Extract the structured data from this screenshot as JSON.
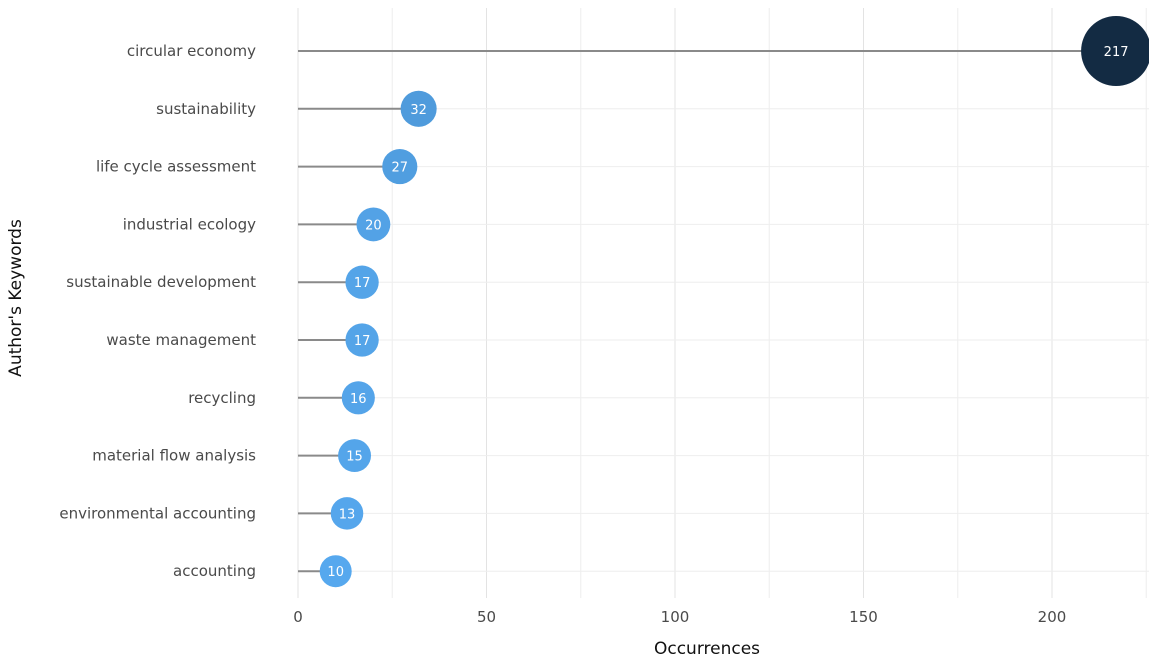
{
  "chart_data": {
    "type": "lollipop",
    "categories": [
      "circular economy",
      "sustainability",
      "life cycle assessment",
      "industrial ecology",
      "sustainable development",
      "waste management",
      "recycling",
      "material flow analysis",
      "environmental accounting",
      "accounting"
    ],
    "values": [
      217,
      32,
      27,
      20,
      17,
      17,
      16,
      15,
      13,
      10
    ],
    "value_labels": [
      "217",
      "32",
      "27",
      "20",
      "17",
      "17",
      "16",
      "15",
      "13",
      "10"
    ],
    "x_ticks": [
      0,
      50,
      100,
      150,
      200
    ],
    "x_tick_labels": [
      "0",
      "50",
      "100",
      "150",
      "200"
    ],
    "xlim": [
      0,
      225
    ],
    "xlabel": "Occurrences",
    "ylabel": "Author's Keywords",
    "grid": true,
    "colors": {
      "point_low": "#56a8ee",
      "point_high": "#132b43",
      "stem": "#8a8a8a",
      "grid": "#e3e3e3"
    }
  }
}
